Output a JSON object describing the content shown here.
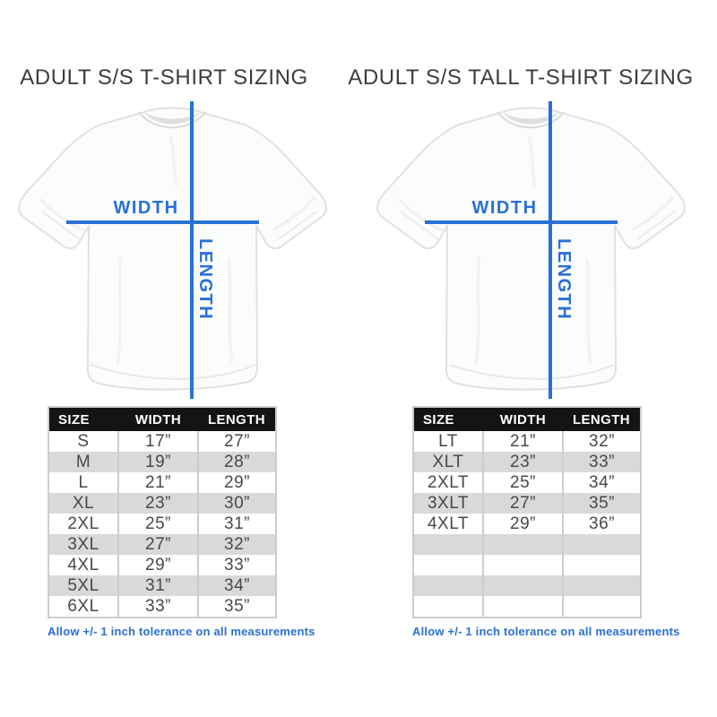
{
  "colors": {
    "accent_blue": "#2a70d6",
    "table_header_bg": "#141414",
    "table_alt_row": "#d9d9d9",
    "table_border": "#cdcdcd",
    "title_text": "#3a3d40"
  },
  "panels": [
    {
      "title": "ADULT S/S T-SHIRT SIZING",
      "diagram": {
        "width_label": "WIDTH",
        "length_label": "LENGTH"
      },
      "table": {
        "headers": [
          "SIZE",
          "WIDTH",
          "LENGTH"
        ],
        "rows": [
          [
            "S",
            "17”",
            "27”"
          ],
          [
            "M",
            "19”",
            "28”"
          ],
          [
            "L",
            "21”",
            "29”"
          ],
          [
            "XL",
            "23”",
            "30”"
          ],
          [
            "2XL",
            "25”",
            "31”"
          ],
          [
            "3XL",
            "27”",
            "32”"
          ],
          [
            "4XL",
            "29”",
            "33”"
          ],
          [
            "5XL",
            "31”",
            "34”"
          ],
          [
            "6XL",
            "33”",
            "35”"
          ]
        ],
        "empty_rows": 0
      },
      "note": "Allow +/- 1 inch tolerance on all measurements"
    },
    {
      "title": "ADULT S/S TALL T-SHIRT SIZING",
      "diagram": {
        "width_label": "WIDTH",
        "length_label": "LENGTH"
      },
      "table": {
        "headers": [
          "SIZE",
          "WIDTH",
          "LENGTH"
        ],
        "rows": [
          [
            "LT",
            "21”",
            "32”"
          ],
          [
            "XLT",
            "23”",
            "33”"
          ],
          [
            "2XLT",
            "25”",
            "34”"
          ],
          [
            "3XLT",
            "27”",
            "35”"
          ],
          [
            "4XLT",
            "29”",
            "36”"
          ]
        ],
        "empty_rows": 4
      },
      "note": "Allow +/- 1 inch tolerance on all measurements"
    }
  ],
  "chart_data": [
    {
      "type": "table",
      "title": "ADULT S/S T-SHIRT SIZING",
      "columns": [
        "SIZE",
        "WIDTH",
        "LENGTH"
      ],
      "rows": [
        [
          "S",
          "17”",
          "27”"
        ],
        [
          "M",
          "19”",
          "28”"
        ],
        [
          "L",
          "21”",
          "29”"
        ],
        [
          "XL",
          "23”",
          "30”"
        ],
        [
          "2XL",
          "25”",
          "31”"
        ],
        [
          "3XL",
          "27”",
          "32”"
        ],
        [
          "4XL",
          "29”",
          "33”"
        ],
        [
          "5XL",
          "31”",
          "34”"
        ],
        [
          "6XL",
          "33”",
          "35”"
        ]
      ],
      "note": "Allow +/- 1 inch tolerance on all measurements"
    },
    {
      "type": "table",
      "title": "ADULT S/S TALL T-SHIRT SIZING",
      "columns": [
        "SIZE",
        "WIDTH",
        "LENGTH"
      ],
      "rows": [
        [
          "LT",
          "21”",
          "32”"
        ],
        [
          "XLT",
          "23”",
          "33”"
        ],
        [
          "2XLT",
          "25”",
          "34”"
        ],
        [
          "3XLT",
          "27”",
          "35”"
        ],
        [
          "4XLT",
          "29”",
          "36”"
        ]
      ],
      "note": "Allow +/- 1 inch tolerance on all measurements"
    }
  ]
}
